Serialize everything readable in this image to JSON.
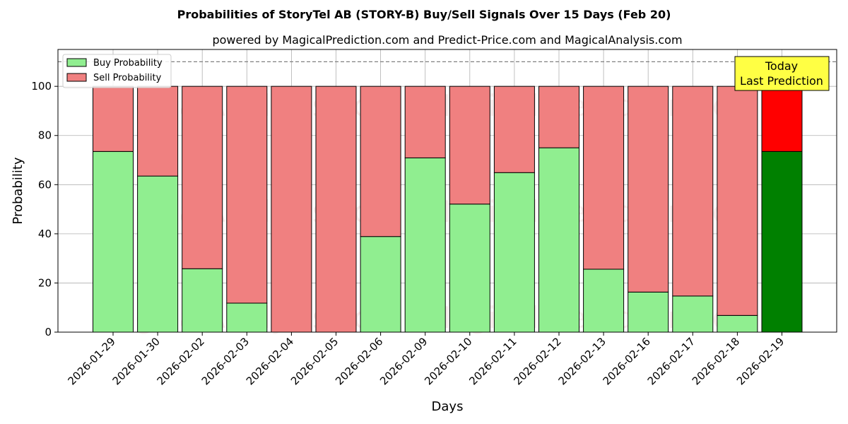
{
  "chart_data": {
    "type": "bar",
    "stacked": true,
    "title": "Probabilities of StoryTel AB (STORY-B) Buy/Sell Signals Over 15 Days (Feb 20)",
    "subtitle": "powered by MagicalPrediction.com and Predict-Price.com and MagicalAnalysis.com",
    "xlabel": "Days",
    "ylabel": "Probability",
    "ylim": [
      0,
      115
    ],
    "yticks": [
      0,
      20,
      40,
      60,
      80,
      100
    ],
    "grid": true,
    "legend_position": "top-left",
    "reference_line": 110,
    "categories": [
      "2026-01-29",
      "2026-01-30",
      "2026-02-02",
      "2026-02-03",
      "2026-02-04",
      "2026-02-05",
      "2026-02-06",
      "2026-02-09",
      "2026-02-10",
      "2026-02-11",
      "2026-02-12",
      "2026-02-13",
      "2026-02-16",
      "2026-02-17",
      "2026-02-18",
      "2026-02-19"
    ],
    "series": [
      {
        "name": "Buy Probability",
        "color": "#90ee90",
        "highlight_color": "#008000",
        "values": [
          73.5,
          63.5,
          25.8,
          11.8,
          0,
          0,
          38.9,
          70.9,
          52.1,
          64.9,
          75.0,
          25.6,
          16.3,
          14.7,
          6.8,
          73.5
        ]
      },
      {
        "name": "Sell Probability",
        "color": "#f08080",
        "highlight_color": "#ff0000",
        "values": [
          26.5,
          36.5,
          74.2,
          88.2,
          100,
          100,
          61.1,
          29.1,
          47.9,
          35.1,
          25.0,
          74.4,
          83.7,
          85.3,
          93.2,
          26.5
        ]
      }
    ],
    "annotation": {
      "lines": [
        "Today",
        "Last Prediction"
      ],
      "background": "#ffff44",
      "target_category": "2026-02-19"
    },
    "watermarks": [
      "MagicalAnalysis.com",
      "MagicalPrediction.com"
    ]
  }
}
